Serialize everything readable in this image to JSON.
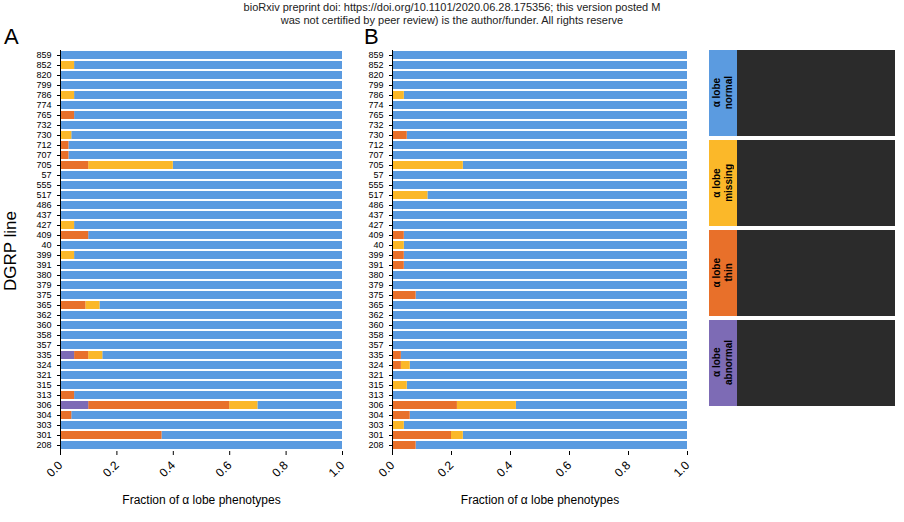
{
  "header": [
    "bioRxiv preprint doi: https://doi.org/10.1101/2020.06.28.175356; this version posted M",
    "was not certified by peer review) is the author/funder. All rights reserve"
  ],
  "chart_data": [
    {
      "type": "bar",
      "panel": "A",
      "orientation": "horizontal",
      "stacked": true,
      "legend": "right",
      "y_label": "DGRP line",
      "x_label": "Fraction of α lobe phenotypes",
      "categories": [
        "859",
        "852",
        "820",
        "799",
        "786",
        "774",
        "765",
        "732",
        "730",
        "712",
        "707",
        "705",
        "57",
        "555",
        "517",
        "486",
        "437",
        "427",
        "409",
        "40",
        "399",
        "391",
        "380",
        "379",
        "375",
        "365",
        "362",
        "360",
        "358",
        "357",
        "335",
        "324",
        "321",
        "315",
        "313",
        "306",
        "304",
        "303",
        "301",
        "208"
      ],
      "xlim": [
        0,
        1
      ],
      "xticks": [
        {
          "value": 0,
          "label": "0.0"
        },
        {
          "value": 0.2,
          "label": "0.2"
        },
        {
          "value": 0.4,
          "label": "0.4"
        },
        {
          "value": 0.6,
          "label": "0.6"
        },
        {
          "value": 0.8,
          "label": "0.8"
        },
        {
          "value": 1,
          "label": "1.0"
        }
      ],
      "series": [
        {
          "name": "α lobe normal",
          "color": "#5b9be0",
          "values": [
            1,
            0.95,
            1,
            1,
            0.95,
            1,
            0.95,
            1,
            0.96,
            0.97,
            0.97,
            0.6,
            1,
            1,
            1,
            1,
            1,
            0.95,
            0.9,
            1,
            0.95,
            1,
            1,
            1,
            1,
            0.86,
            1,
            1,
            1,
            1,
            0.85,
            1,
            1,
            1,
            0.95,
            0.3,
            0.96,
            1,
            0.64,
            1
          ]
        },
        {
          "name": "α lobe missing",
          "color": "#fbb829",
          "values": [
            0,
            0.05,
            0,
            0,
            0.05,
            0,
            0,
            0,
            0.04,
            0,
            0,
            0.3,
            0,
            0,
            0,
            0,
            0,
            0.05,
            0,
            0,
            0.05,
            0,
            0,
            0,
            0,
            0.05,
            0,
            0,
            0,
            0,
            0.05,
            0,
            0,
            0,
            0,
            0.1,
            0,
            0,
            0,
            0
          ]
        },
        {
          "name": "α lobe thin",
          "color": "#e8702a",
          "values": [
            0,
            0,
            0,
            0,
            0,
            0,
            0.05,
            0,
            0,
            0.03,
            0.03,
            0.1,
            0,
            0,
            0,
            0,
            0,
            0,
            0.1,
            0,
            0,
            0,
            0,
            0,
            0,
            0.09,
            0,
            0,
            0,
            0,
            0.05,
            0,
            0,
            0,
            0.05,
            0.5,
            0.04,
            0,
            0.36,
            0
          ]
        },
        {
          "name": "α lobe abnormal",
          "color": "#7d6bb5",
          "values": [
            0,
            0,
            0,
            0,
            0,
            0,
            0,
            0,
            0,
            0,
            0,
            0,
            0,
            0,
            0,
            0,
            0,
            0,
            0,
            0,
            0,
            0,
            0,
            0,
            0,
            0,
            0,
            0,
            0,
            0,
            0.05,
            0,
            0,
            0,
            0,
            0.1,
            0,
            0,
            0,
            0
          ]
        }
      ]
    },
    {
      "type": "bar",
      "panel": "B",
      "orientation": "horizontal",
      "stacked": true,
      "x_label": "Fraction of α lobe phenotypes",
      "categories": [
        "859",
        "852",
        "820",
        "799",
        "786",
        "774",
        "765",
        "732",
        "730",
        "712",
        "707",
        "705",
        "57",
        "555",
        "517",
        "486",
        "437",
        "427",
        "409",
        "40",
        "399",
        "391",
        "380",
        "379",
        "375",
        "365",
        "362",
        "360",
        "358",
        "357",
        "335",
        "324",
        "321",
        "315",
        "313",
        "306",
        "304",
        "303",
        "301",
        "208"
      ],
      "xlim": [
        0,
        1
      ],
      "xticks": [
        {
          "value": 0,
          "label": "0.0"
        },
        {
          "value": 0.2,
          "label": "0.2"
        },
        {
          "value": 0.4,
          "label": "0.4"
        },
        {
          "value": 0.6,
          "label": "0.6"
        },
        {
          "value": 0.8,
          "label": "0.8"
        },
        {
          "value": 1,
          "label": "1.0"
        }
      ],
      "series": [
        {
          "name": "α lobe normal",
          "color": "#5b9be0",
          "values": [
            1,
            1,
            1,
            1,
            0.96,
            1,
            1,
            1,
            0.95,
            1,
            1,
            0.76,
            1,
            1,
            0.88,
            1,
            1,
            1,
            0.96,
            0.96,
            0.96,
            0.96,
            1,
            1,
            0.92,
            1,
            1,
            1,
            1,
            1,
            0.97,
            0.94,
            1,
            0.95,
            1,
            0.58,
            0.94,
            0.96,
            0.76,
            0.92
          ]
        },
        {
          "name": "α lobe missing",
          "color": "#fbb829",
          "values": [
            0,
            0,
            0,
            0,
            0.04,
            0,
            0,
            0,
            0,
            0,
            0,
            0.24,
            0,
            0,
            0.12,
            0,
            0,
            0,
            0,
            0.04,
            0,
            0,
            0,
            0,
            0,
            0,
            0,
            0,
            0,
            0,
            0,
            0.03,
            0,
            0.05,
            0,
            0.2,
            0,
            0.04,
            0.04,
            0
          ]
        },
        {
          "name": "α lobe thin",
          "color": "#e8702a",
          "values": [
            0,
            0,
            0,
            0,
            0,
            0,
            0,
            0,
            0.05,
            0,
            0,
            0,
            0,
            0,
            0,
            0,
            0,
            0,
            0.04,
            0,
            0.04,
            0.04,
            0,
            0,
            0.08,
            0,
            0,
            0,
            0,
            0,
            0.03,
            0.03,
            0,
            0,
            0,
            0.22,
            0.06,
            0,
            0.2,
            0.08
          ]
        },
        {
          "name": "α lobe abnormal",
          "color": "#7d6bb5",
          "values": [
            0,
            0,
            0,
            0,
            0,
            0,
            0,
            0,
            0,
            0,
            0,
            0,
            0,
            0,
            0,
            0,
            0,
            0,
            0,
            0,
            0,
            0,
            0,
            0,
            0,
            0,
            0,
            0,
            0,
            0,
            0,
            0,
            0,
            0,
            0,
            0,
            0,
            0,
            0,
            0
          ]
        }
      ]
    }
  ]
}
